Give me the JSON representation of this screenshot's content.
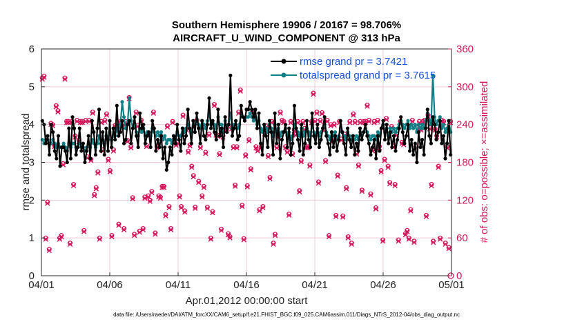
{
  "chart_data": {
    "type": "line",
    "title": "Southern Hemisphere 19906 / 20167 = 98.706%",
    "subtitle": "AIRCRAFT_U_WIND_COMPONENT @ 313 hPa",
    "xlabel": "Apr.01,2012 00:00:00 start",
    "ylabel": "rmse and totalspread",
    "ylabel_right": "# of obs: o=possible; ×=assimilated",
    "x_tick_labels": [
      "04/01",
      "04/06",
      "04/11",
      "04/16",
      "04/21",
      "04/26",
      "05/01"
    ],
    "xlim": [
      0,
      30
    ],
    "ylim": [
      0,
      6
    ],
    "y_ticks": [
      "0",
      "1",
      "2",
      "3",
      "4",
      "5",
      "6"
    ],
    "ylim_right": [
      0,
      360
    ],
    "y_ticks_right": [
      "0",
      "60",
      "120",
      "180",
      "240",
      "300",
      "360"
    ],
    "legend_position": "top-right",
    "footer": "data file: /Users/raeder/DAI/ATM_forcXX/CAM6_setup/f.e21.FHIST_BGC.f09_025.CAM6assim.011/Diags_NTrS_2012-04/obs_diag_output.nc",
    "colors": {
      "rmse": "#000000",
      "spread": "#0f7f85",
      "obs": "#d6165c",
      "legend_text": "#1450d8"
    },
    "series": [
      {
        "name": "rmse grand pr = 3.7421",
        "values": [
          4.1,
          4.0,
          3.5,
          3.7,
          3.2,
          4.0,
          3.8,
          3.3,
          3.1,
          3.7,
          2.9,
          3.4,
          3.4,
          3.3,
          3.0,
          3.9,
          3.1,
          4.2,
          3.9,
          3.2,
          3.4,
          3.9,
          3.3,
          3.5,
          3.0,
          3.3,
          3.7,
          3.1,
          4.1,
          3.8,
          3.2,
          3.9,
          4.4,
          3.3,
          3.8,
          3.2,
          3.9,
          3.3,
          4.1,
          3.4,
          3.9,
          3.6,
          4.5,
          3.7,
          3.8,
          4.1,
          3.5,
          3.6,
          4.0,
          4.1,
          3.5,
          3.9,
          4.2,
          3.7,
          3.4,
          4.3,
          3.9,
          4.0,
          3.5,
          3.7,
          3.8,
          3.4,
          4.1,
          3.9,
          3.3,
          3.6,
          3.4,
          3.7,
          3.1,
          3.4,
          2.8,
          3.0,
          3.4,
          3.2,
          3.7,
          3.5,
          4.0,
          3.6,
          3.3,
          3.9,
          3.5,
          3.7,
          4.4,
          3.9,
          3.5,
          4.1,
          3.8,
          4.3,
          3.9,
          3.5,
          4.1,
          3.7,
          3.6,
          4.0,
          4.7,
          3.9,
          4.1,
          3.8,
          3.6,
          4.4,
          3.7,
          3.9,
          3.4,
          4.2,
          3.8,
          4.0,
          5.3,
          3.7,
          3.9,
          4.1,
          3.6,
          3.7,
          4.5,
          4.2,
          4.1,
          4.4,
          4.4,
          4.6,
          4.4,
          4.2,
          4.4,
          3.9,
          4.3,
          3.5,
          3.2,
          4.0,
          3.7,
          3.4,
          4.1,
          3.8,
          3.2,
          4.3,
          3.5,
          4.0,
          3.1,
          3.6,
          3.8,
          4.0,
          3.4,
          3.9,
          3.2,
          3.5,
          4.5,
          3.9,
          3.6,
          3.3,
          4.0,
          3.2,
          3.5,
          4.1,
          3.6,
          3.4,
          4.3,
          3.7,
          3.5,
          4.0,
          3.4,
          3.6,
          3.9,
          4.2,
          3.7,
          3.5,
          3.2,
          3.8,
          3.4,
          3.7,
          3.3,
          3.6,
          4.1,
          3.8,
          3.5,
          3.2,
          3.9,
          3.6,
          3.4,
          3.7,
          3.2,
          3.5,
          3.3,
          3.9,
          3.6,
          3.8,
          4.0,
          3.7,
          3.5,
          3.2,
          3.4,
          3.6,
          3.1,
          3.7,
          3.3,
          3.9,
          4.1,
          3.6,
          4.0,
          3.5,
          3.8,
          3.4,
          3.7,
          3.3,
          3.6,
          3.9,
          4.2,
          3.8,
          3.5,
          3.7,
          4.0,
          3.3,
          3.6,
          3.2,
          3.5,
          3.0,
          3.8,
          3.4,
          3.6,
          3.2,
          3.9,
          4.4,
          3.7,
          3.5,
          4.2,
          4.0,
          3.6,
          3.8,
          4.1,
          3.5,
          3.7,
          3.1,
          3.5,
          4.1,
          3.2
        ]
      },
      {
        "name": "totalspread grand pr = 3.7615",
        "values": [
          3.6,
          3.5,
          3.6,
          3.6,
          3.5,
          3.5,
          3.6,
          3.5,
          3.4,
          3.5,
          3.4,
          3.4,
          3.5,
          3.4,
          3.3,
          3.5,
          3.4,
          3.5,
          3.5,
          3.4,
          3.4,
          3.5,
          3.4,
          3.4,
          3.3,
          3.4,
          3.5,
          3.4,
          3.6,
          3.5,
          3.4,
          3.5,
          3.7,
          3.5,
          3.6,
          3.5,
          3.7,
          3.6,
          3.8,
          3.6,
          3.7,
          3.7,
          3.9,
          3.8,
          4.0,
          4.6,
          4.2,
          3.9,
          4.0,
          4.7,
          4.1,
          3.9,
          4.0,
          3.8,
          3.7,
          3.9,
          3.8,
          3.9,
          3.7,
          3.8,
          3.8,
          3.7,
          3.9,
          3.8,
          3.7,
          3.8,
          3.7,
          3.8,
          3.6,
          3.7,
          3.5,
          3.6,
          3.6,
          3.5,
          3.7,
          3.6,
          3.8,
          3.7,
          3.7,
          3.9,
          3.8,
          3.9,
          4.0,
          3.9,
          3.8,
          4.1,
          4.0,
          4.1,
          4.0,
          3.9,
          4.1,
          4.0,
          3.9,
          4.1,
          4.3,
          4.0,
          4.1,
          4.0,
          3.9,
          4.2,
          4.0,
          4.0,
          3.8,
          4.1,
          3.9,
          4.0,
          4.3,
          3.9,
          4.0,
          4.0,
          3.9,
          4.0,
          4.3,
          4.2,
          4.1,
          4.2,
          4.2,
          4.3,
          4.2,
          4.1,
          4.2,
          4.0,
          4.1,
          3.9,
          3.8,
          4.0,
          3.9,
          3.8,
          4.0,
          3.9,
          3.7,
          4.0,
          3.8,
          3.9,
          3.7,
          3.8,
          3.8,
          3.9,
          3.7,
          3.8,
          3.6,
          3.7,
          4.0,
          3.9,
          3.8,
          3.7,
          3.9,
          3.7,
          3.8,
          3.9,
          3.8,
          3.7,
          4.0,
          3.8,
          3.7,
          3.9,
          3.7,
          3.8,
          3.9,
          4.0,
          3.8,
          3.7,
          3.6,
          3.8,
          3.7,
          3.8,
          3.6,
          3.7,
          3.9,
          3.8,
          3.7,
          3.6,
          3.8,
          3.7,
          3.6,
          3.7,
          3.6,
          3.7,
          3.6,
          3.8,
          3.7,
          3.8,
          3.9,
          3.8,
          3.7,
          3.6,
          3.7,
          3.7,
          3.6,
          3.8,
          3.7,
          3.9,
          4.0,
          3.8,
          3.9,
          3.7,
          3.9,
          3.8,
          3.9,
          3.8,
          3.9,
          4.0,
          4.1,
          4.0,
          3.9,
          4.0,
          4.1,
          3.9,
          4.0,
          3.9,
          4.0,
          3.8,
          4.0,
          3.9,
          4.0,
          3.9,
          4.1,
          4.3,
          4.1,
          4.0,
          5.3,
          4.2,
          4.0,
          4.1,
          4.2,
          3.9,
          4.0,
          3.8,
          3.9,
          4.1,
          3.8
        ]
      },
      {
        "name": "# of obs possible",
        "axis": "right",
        "values": [
          314,
          317,
          60,
          117,
          42,
          242,
          240,
          207,
          270,
          262,
          60,
          64,
          178,
          314,
          245,
          245,
          52,
          245,
          145,
          222,
          247,
          215,
          245,
          245,
          72,
          247,
          189,
          247,
          185,
          260,
          129,
          140,
          165,
          60,
          245,
          200,
          247,
          257,
          185,
          167,
          64,
          200,
          239,
          235,
          82,
          245,
          238,
          75,
          245,
          215,
          283,
          205,
          124,
          66,
          260,
          239,
          71,
          247,
          75,
          125,
          207,
          127,
          120,
          134,
          260,
          68,
          205,
          127,
          125,
          142,
          142,
          97,
          238,
          110,
          75,
          245,
          217,
          209,
          212,
          127,
          110,
          255,
          103,
          233,
          198,
          208,
          174,
          159,
          109,
          247,
          150,
          205,
          127,
          142,
          196,
          109,
          225,
          60,
          102,
          272,
          225,
          223,
          194,
          74,
          222,
          233,
          232,
          67,
          62,
          235,
          205,
          144,
          205,
          260,
          295,
          112,
          59,
          192,
          143,
          216,
          170,
          260,
          262,
          205,
          200,
          105,
          205,
          110,
          227,
          238,
          191,
          156,
          245,
          52,
          66,
          205,
          222,
          260,
          247,
          245,
          205,
          198,
          98,
          245,
          194,
          232,
          225,
          245,
          135,
          183,
          245,
          234,
          205,
          205,
          176,
          245,
          290,
          247,
          260,
          149,
          247,
          259,
          232,
          183,
          247,
          64,
          240,
          215,
          241,
          96,
          160,
          245,
          217,
          95,
          225,
          140,
          62,
          245,
          52,
          257,
          245,
          195,
          176,
          245,
          136,
          245,
          245,
          271,
          247,
          130,
          200,
          245,
          108,
          247,
          205,
          167,
          57,
          185,
          250,
          174,
          148,
          237,
          206,
          145,
          225,
          57,
          245,
          212,
          210,
          67,
          72,
          60,
          105,
          247,
          55,
          205,
          235,
          245,
          233,
          245,
          247,
          96,
          255,
          235,
          145,
          55,
          233,
          222,
          174,
          60,
          247,
          245,
          52,
          205,
          45,
          245
        ]
      },
      {
        "name": "# of obs assimilated",
        "axis": "right",
        "values": [
          312,
          315,
          58,
          115,
          40,
          240,
          238,
          205,
          268,
          260,
          58,
          62,
          176,
          312,
          243,
          243,
          50,
          243,
          143,
          220,
          245,
          213,
          243,
          243,
          70,
          245,
          187,
          245,
          183,
          258,
          127,
          138,
          163,
          58,
          243,
          198,
          245,
          255,
          183,
          165,
          62,
          198,
          237,
          233,
          80,
          243,
          236,
          73,
          243,
          213,
          281,
          203,
          122,
          64,
          258,
          237,
          69,
          245,
          73,
          123,
          205,
          125,
          118,
          132,
          258,
          66,
          203,
          125,
          123,
          140,
          140,
          95,
          236,
          108,
          73,
          243,
          215,
          207,
          210,
          125,
          108,
          253,
          101,
          231,
          196,
          206,
          172,
          157,
          107,
          245,
          148,
          203,
          125,
          140,
          194,
          107,
          223,
          58,
          100,
          270,
          223,
          221,
          192,
          72,
          220,
          231,
          230,
          65,
          60,
          233,
          203,
          142,
          203,
          258,
          293,
          110,
          57,
          190,
          141,
          214,
          168,
          258,
          260,
          203,
          198,
          103,
          203,
          108,
          225,
          236,
          189,
          154,
          243,
          50,
          64,
          203,
          220,
          258,
          245,
          243,
          203,
          196,
          96,
          243,
          192,
          230,
          223,
          243,
          133,
          181,
          243,
          232,
          203,
          203,
          174,
          243,
          288,
          245,
          258,
          147,
          245,
          257,
          230,
          181,
          245,
          62,
          238,
          213,
          239,
          94,
          158,
          243,
          215,
          93,
          223,
          138,
          60,
          243,
          50,
          255,
          243,
          193,
          174,
          243,
          134,
          243,
          243,
          269,
          245,
          128,
          198,
          243,
          106,
          245,
          203,
          165,
          55,
          183,
          248,
          172,
          146,
          235,
          204,
          143,
          223,
          55,
          243,
          210,
          208,
          65,
          70,
          58,
          103,
          245,
          53,
          203,
          233,
          243,
          231,
          243,
          245,
          94,
          253,
          233,
          143,
          53,
          231,
          220,
          172,
          58,
          245,
          243,
          50,
          203,
          43,
          243
        ]
      }
    ]
  }
}
